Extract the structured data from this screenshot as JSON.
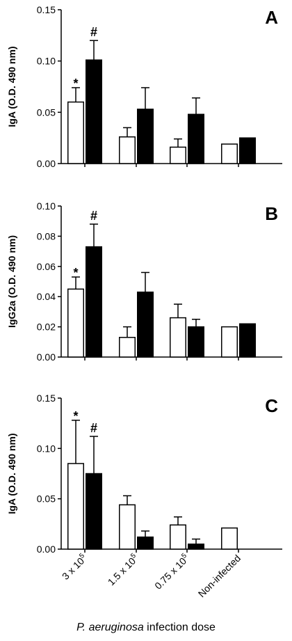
{
  "figure": {
    "xlabel_italic": "P. aeruginosa",
    "xlabel_rest": " infection dose",
    "categories": [
      {
        "base": "3 x 10",
        "exp": "5"
      },
      {
        "base": "1.5 x 10",
        "exp": "5"
      },
      {
        "base": "0.75 x 10",
        "exp": "5"
      },
      {
        "base": "Non-infected",
        "exp": ""
      }
    ],
    "colors": {
      "open": "#ffffff",
      "filled": "#000000",
      "stroke": "#000000"
    }
  },
  "chart_data": [
    {
      "type": "bar",
      "panel": "A",
      "ylabel": "IgA (O.D. 490 nm)",
      "ylim": [
        0,
        0.15
      ],
      "yticks": [
        "0.00",
        "0.05",
        "0.10",
        "0.15"
      ],
      "categories": [
        "3 x 10^5",
        "1.5 x 10^5",
        "0.75 x 10^5",
        "Non-infected"
      ],
      "series": [
        {
          "fill": "open",
          "values": [
            0.06,
            0.026,
            0.016,
            0.019
          ],
          "errors": [
            0.014,
            0.009,
            0.008,
            0
          ]
        },
        {
          "fill": "filled",
          "values": [
            0.101,
            0.053,
            0.048,
            0.025
          ],
          "errors": [
            0.019,
            0.021,
            0.016,
            0
          ]
        }
      ],
      "annotations": [
        {
          "text": "*",
          "category": 0,
          "series": 0
        },
        {
          "text": "#",
          "category": 0,
          "series": 1
        }
      ]
    },
    {
      "type": "bar",
      "panel": "B",
      "ylabel": "IgG2a (O.D. 490 nm)",
      "ylim": [
        0,
        0.1
      ],
      "yticks": [
        "0.00",
        "0.02",
        "0.04",
        "0.06",
        "0.08",
        "0.10"
      ],
      "categories": [
        "3 x 10^5",
        "1.5 x 10^5",
        "0.75 x 10^5",
        "Non-infected"
      ],
      "series": [
        {
          "fill": "open",
          "values": [
            0.045,
            0.013,
            0.026,
            0.02
          ],
          "errors": [
            0.008,
            0.007,
            0.009,
            0
          ]
        },
        {
          "fill": "filled",
          "values": [
            0.073,
            0.043,
            0.02,
            0.022
          ],
          "errors": [
            0.015,
            0.013,
            0.005,
            0
          ]
        }
      ],
      "annotations": [
        {
          "text": "*",
          "category": 0,
          "series": 0
        },
        {
          "text": "#",
          "category": 0,
          "series": 1
        }
      ]
    },
    {
      "type": "bar",
      "panel": "C",
      "ylabel": "IgA (O.D. 490 nm)",
      "ylim": [
        0,
        0.15
      ],
      "yticks": [
        "0.00",
        "0.05",
        "0.10",
        "0.15"
      ],
      "categories": [
        "3 x 10^5",
        "1.5 x 10^5",
        "0.75 x 10^5",
        "Non-infected"
      ],
      "series": [
        {
          "fill": "open",
          "values": [
            0.085,
            0.044,
            0.024,
            0.021
          ],
          "errors": [
            0.043,
            0.009,
            0.008,
            0
          ]
        },
        {
          "fill": "filled",
          "values": [
            0.075,
            0.012,
            0.005,
            null
          ],
          "errors": [
            0.037,
            0.006,
            0.005,
            0
          ]
        }
      ],
      "annotations": [
        {
          "text": "*",
          "category": 0,
          "series": 0
        },
        {
          "text": "#",
          "category": 0,
          "series": 1
        }
      ]
    }
  ]
}
